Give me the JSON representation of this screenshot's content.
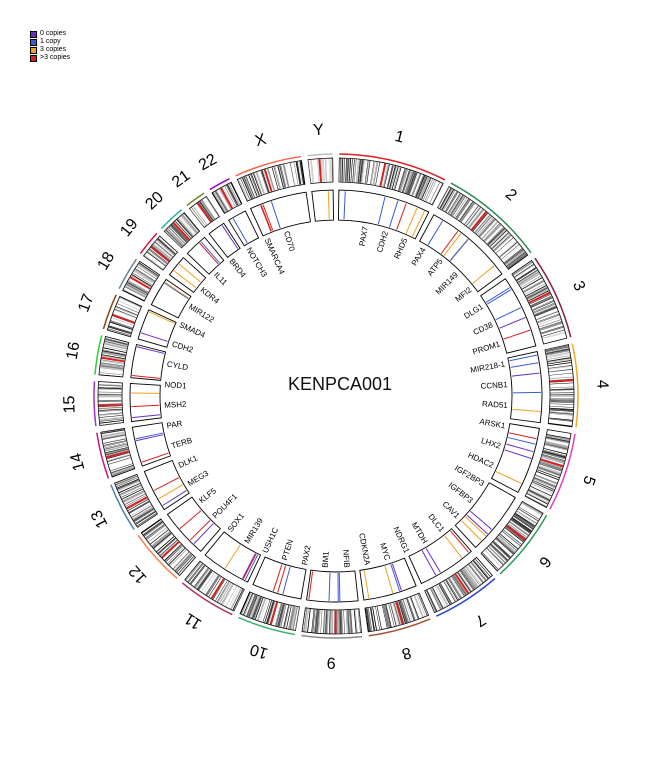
{
  "chart_data": {
    "type": "circos",
    "title": "KENPCA001",
    "legend": {
      "placement": "top-left",
      "items": [
        {
          "label": "0 copies",
          "color": "#6a2cc9"
        },
        {
          "label": "1 copy",
          "color": "#3a5bd9"
        },
        {
          "label": "3 copies",
          "color": "#f0a020"
        },
        {
          "label": ">3 copies",
          "color": "#d81f1f"
        }
      ]
    },
    "colors": {
      "cnv_0": "#6a2cc9",
      "cnv_1": "#3a5bd9",
      "cnv_3": "#f0a020",
      "cnv_gt3": "#d81f1f"
    },
    "chromosomes": [
      {
        "name": "1",
        "color": "#e41a1c"
      },
      {
        "name": "2",
        "color": "#2e8b57"
      },
      {
        "name": "3",
        "color": "#8b1a4a"
      },
      {
        "name": "4",
        "color": "#f5a623"
      },
      {
        "name": "5",
        "color": "#e040c0"
      },
      {
        "name": "6",
        "color": "#2a9d5a"
      },
      {
        "name": "7",
        "color": "#2b3fd1"
      },
      {
        "name": "8",
        "color": "#a0522d"
      },
      {
        "name": "9",
        "color": "#888888"
      },
      {
        "name": "10",
        "color": "#3cb371"
      },
      {
        "name": "11",
        "color": "#b03060"
      },
      {
        "name": "12",
        "color": "#ff7f50"
      },
      {
        "name": "13",
        "color": "#4682b4"
      },
      {
        "name": "14",
        "color": "#c71585"
      },
      {
        "name": "15",
        "color": "#9932cc"
      },
      {
        "name": "16",
        "color": "#32cd32"
      },
      {
        "name": "17",
        "color": "#8b4513"
      },
      {
        "name": "18",
        "color": "#708090"
      },
      {
        "name": "19",
        "color": "#dc143c"
      },
      {
        "name": "20",
        "color": "#20b2aa"
      },
      {
        "name": "21",
        "color": "#6b8e23"
      },
      {
        "name": "22",
        "color": "#9400d3"
      },
      {
        "name": "X",
        "color": "#ff6347"
      },
      {
        "name": "Y",
        "color": "#bdbdbd"
      }
    ],
    "gene_labels": [
      "PAX7",
      "CDH2",
      "RHD5",
      "PAX4",
      "ATP5",
      "MIR149",
      "MFI2",
      "DLG1",
      "CD38",
      "PROM1",
      "MIR218-1",
      "CCNB1",
      "RAD51",
      "ARSK1",
      "LHX2",
      "HDAC2",
      "IGF2BP3",
      "IGFBP3",
      "CAV1",
      "DLC1",
      "MTDH",
      "NDRG1",
      "MYC",
      "CDKN2A",
      "NFIB",
      "BM1",
      "PAX2",
      "PTEN",
      "USH1C",
      "MIR139",
      "SOX1",
      "POU4F1",
      "KLF5",
      "MEG3",
      "DLK1",
      "TERB",
      "PAR",
      "MSH2",
      "NOD1",
      "CYLD",
      "CDH2",
      "SMAD4",
      "MIR122",
      "KDR4",
      "IL11",
      "BRD4",
      "NOTCH3",
      "SMARCA4",
      "CD70"
    ]
  }
}
